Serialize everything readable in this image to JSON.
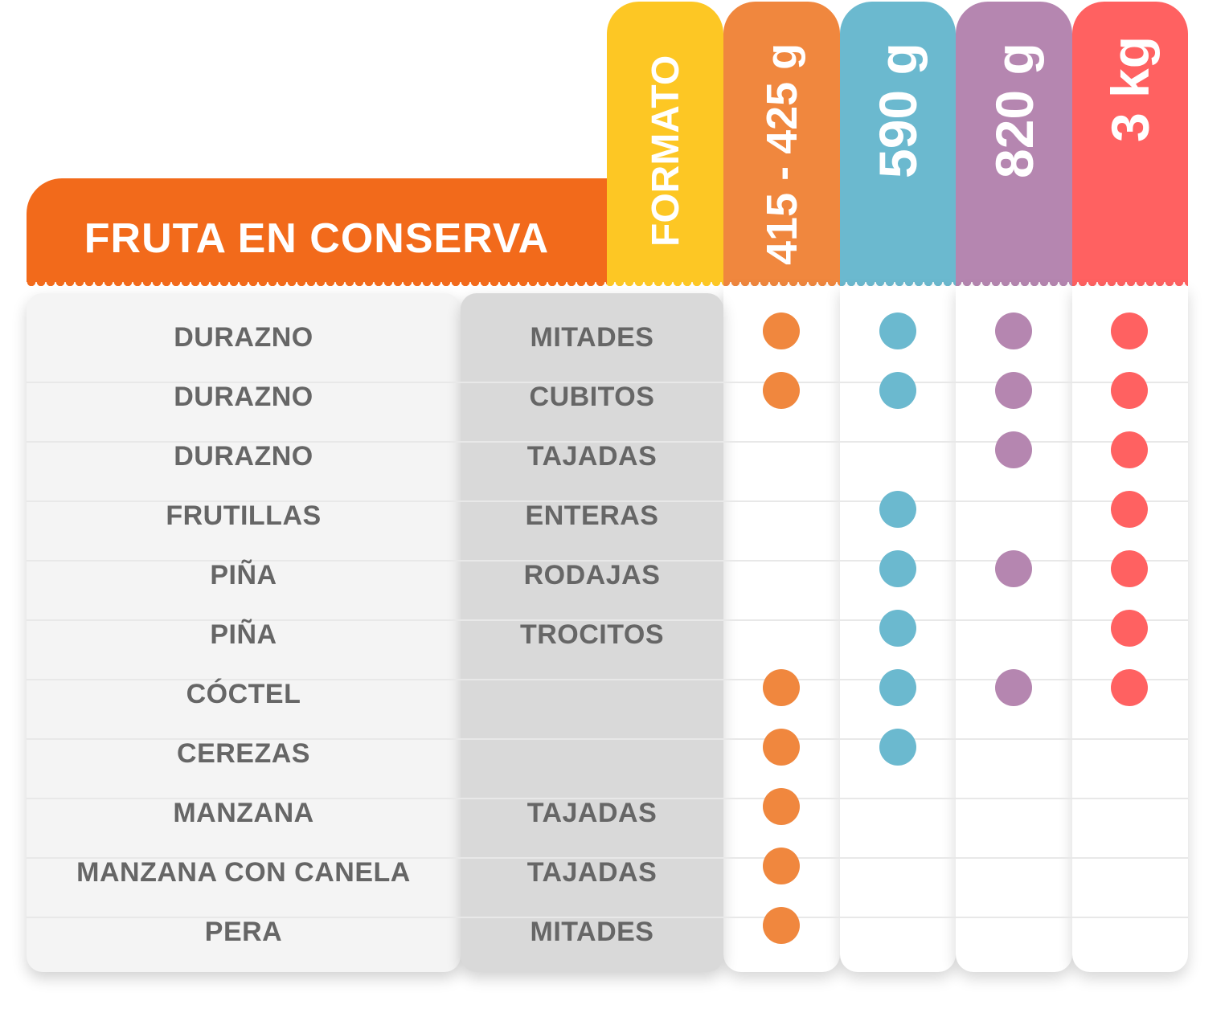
{
  "title": "FRUTA EN CONSERVA",
  "header": {
    "format_label": "FORMATO",
    "sizes": [
      {
        "label": "415 - 425 g",
        "color": "#f0873e"
      },
      {
        "label": "590 g",
        "color": "#6bb9cf"
      },
      {
        "label": "820 g",
        "color": "#b586b0"
      },
      {
        "label": "3 kg",
        "color": "#ff6161"
      }
    ],
    "format_color": "#fdc724"
  },
  "rows": [
    {
      "product": "DURAZNO",
      "format": "MITADES",
      "avail": [
        true,
        true,
        true,
        true
      ]
    },
    {
      "product": "DURAZNO",
      "format": "CUBITOS",
      "avail": [
        true,
        true,
        true,
        true
      ]
    },
    {
      "product": "DURAZNO",
      "format": "TAJADAS",
      "avail": [
        false,
        false,
        true,
        true
      ]
    },
    {
      "product": "FRUTILLAS",
      "format": "ENTERAS",
      "avail": [
        false,
        true,
        false,
        true
      ]
    },
    {
      "product": "PIÑA",
      "format": "RODAJAS",
      "avail": [
        false,
        true,
        true,
        true
      ]
    },
    {
      "product": "PIÑA",
      "format": "TROCITOS",
      "avail": [
        false,
        true,
        false,
        true
      ]
    },
    {
      "product": "CÓCTEL",
      "format": "",
      "avail": [
        true,
        true,
        true,
        true
      ]
    },
    {
      "product": "CEREZAS",
      "format": "",
      "avail": [
        true,
        true,
        false,
        false
      ]
    },
    {
      "product": "MANZANA",
      "format": "TAJADAS",
      "avail": [
        true,
        false,
        false,
        false
      ]
    },
    {
      "product": "MANZANA CON CANELA",
      "format": "TAJADAS",
      "avail": [
        true,
        false,
        false,
        false
      ]
    },
    {
      "product": "PERA",
      "format": "MITADES",
      "avail": [
        true,
        false,
        false,
        false
      ]
    }
  ]
}
